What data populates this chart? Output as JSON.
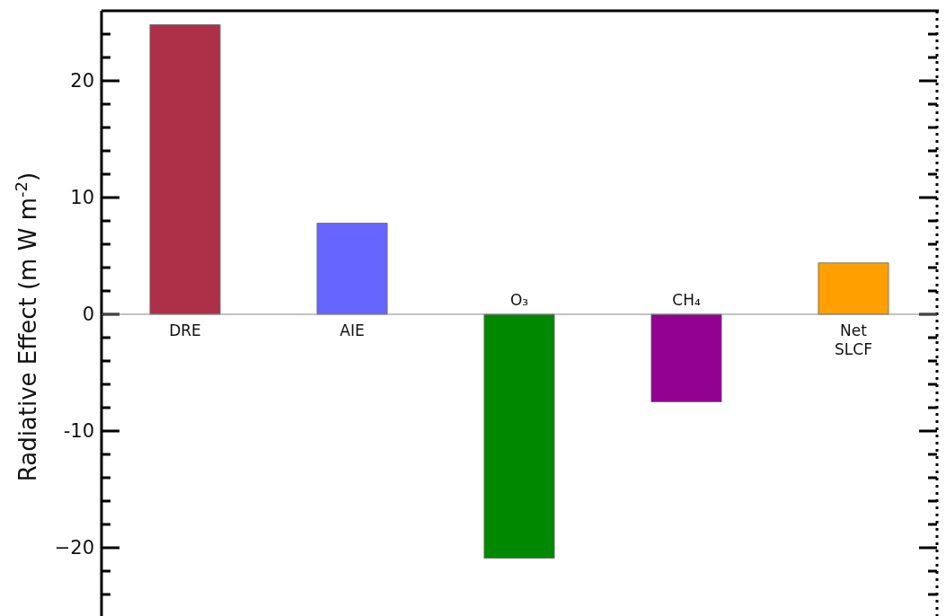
{
  "chart_data": {
    "type": "bar",
    "ylabel": "Radiative Effect (m W m$^{-2}$)",
    "categories": [
      "DRE",
      "AIE",
      "O₃",
      "CH₄",
      "Net SLCF"
    ],
    "values": [
      24.8,
      7.8,
      -20.9,
      -7.5,
      4.4
    ],
    "colors": [
      "#ad3048",
      "#6666ff",
      "#008800",
      "#910091",
      "#ffa000"
    ],
    "ylim": [
      -26,
      26
    ],
    "yticks": [
      {
        "value": -24,
        "label": null
      },
      {
        "value": -22,
        "label": null
      },
      {
        "value": -20,
        "label": "−20"
      },
      {
        "value": -18,
        "label": null
      },
      {
        "value": -16,
        "label": null
      },
      {
        "value": -14,
        "label": null
      },
      {
        "value": -12,
        "label": null
      },
      {
        "value": -10,
        "label": "-10"
      },
      {
        "value": -8,
        "label": null
      },
      {
        "value": -6,
        "label": null
      },
      {
        "value": -4,
        "label": null
      },
      {
        "value": -2,
        "label": null
      },
      0,
      {
        "value": 2,
        "label": null
      },
      {
        "value": 4,
        "label": null
      },
      {
        "value": 6,
        "label": null
      },
      {
        "value": 8,
        "label": null
      },
      10,
      {
        "value": 12,
        "label": null
      },
      {
        "value": 14,
        "label": null
      },
      {
        "value": 16,
        "label": null
      },
      {
        "value": 18,
        "label": null
      },
      20,
      {
        "value": 22,
        "label": null
      },
      {
        "value": 24,
        "label": null
      }
    ]
  }
}
